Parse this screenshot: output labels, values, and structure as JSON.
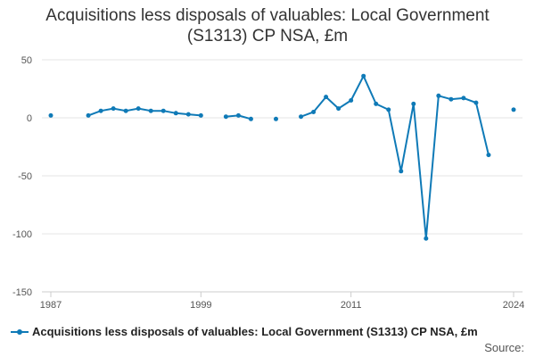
{
  "chart_data": {
    "type": "line",
    "title_lines": [
      "Acquisitions less disposals of valuables: Local Government",
      "(S1313) CP NSA, £m"
    ],
    "xlabel": "",
    "ylabel": "",
    "ylim": [
      -150,
      50
    ],
    "xlim": [
      1987,
      2024
    ],
    "yticks": [
      50,
      0,
      -50,
      -100,
      -150
    ],
    "xticks": [
      1987,
      1999,
      2011,
      2024
    ],
    "grid": true,
    "legend_position": "bottom-left",
    "color": "#0f7ab7",
    "series": [
      {
        "name": "Acquisitions less disposals of valuables: Local Government (S1313) CP NSA, £m",
        "x": [
          1987,
          1988,
          1989,
          1990,
          1991,
          1992,
          1993,
          1994,
          1995,
          1996,
          1997,
          1998,
          1999,
          2000,
          2001,
          2002,
          2003,
          2004,
          2005,
          2006,
          2007,
          2008,
          2009,
          2010,
          2011,
          2012,
          2013,
          2014,
          2015,
          2016,
          2017,
          2018,
          2019,
          2020,
          2021,
          2022,
          2023,
          2024
        ],
        "values": [
          2,
          null,
          null,
          2,
          6,
          8,
          6,
          8,
          6,
          6,
          4,
          3,
          2,
          null,
          1,
          2,
          -1,
          null,
          -1,
          null,
          1,
          5,
          18,
          8,
          15,
          36,
          12,
          7,
          -46,
          12,
          -104,
          19,
          16,
          17,
          13,
          -32,
          null,
          7
        ]
      }
    ]
  },
  "source_label": "Source:"
}
